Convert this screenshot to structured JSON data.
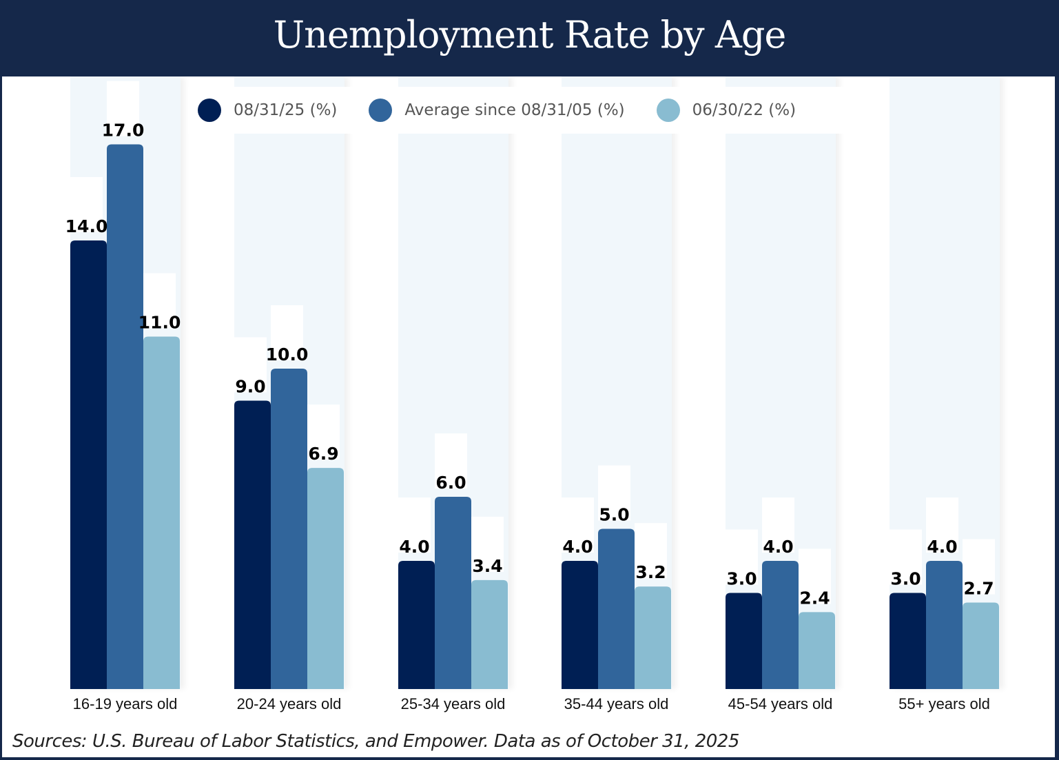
{
  "title": "Unemployment Rate by Age",
  "source": "Sources: U.S. Bureau of Labor Statistics, and Empower. Data as of October 31, 2025",
  "legend": [
    {
      "label": "08/31/25 (%)",
      "color": "#001f54"
    },
    {
      "label": "Average since 08/31/05 (%)",
      "color": "#31659b"
    },
    {
      "label": "06/30/22 (%)",
      "color": "#89bcd1"
    }
  ],
  "chart_data": {
    "type": "bar",
    "title": "Unemployment Rate by Age",
    "xlabel": "",
    "ylabel": "",
    "ylim": [
      0,
      17
    ],
    "grid": false,
    "legend_position": "top",
    "categories": [
      "16-19 years old",
      "20-24 years old",
      "25-34 years old",
      "35-44 years old",
      "45-54 years old",
      "55+ years old"
    ],
    "series": [
      {
        "name": "08/31/25 (%)",
        "color": "#001f54",
        "values": [
          14.0,
          9.0,
          4.0,
          4.0,
          3.0,
          3.0
        ],
        "labels": [
          "14.0",
          "9.0",
          "4.0",
          "4.0",
          "3.0",
          "3.0"
        ]
      },
      {
        "name": "Average since 08/31/05 (%)",
        "color": "#31659b",
        "values": [
          17.0,
          10.0,
          6.0,
          5.0,
          4.0,
          4.0
        ],
        "labels": [
          "17.0",
          "10.0",
          "6.0",
          "5.0",
          "4.0",
          "4.0"
        ]
      },
      {
        "name": "06/30/22 (%)",
        "color": "#89bcd1",
        "values": [
          11.0,
          6.9,
          3.4,
          3.2,
          2.4,
          2.7
        ],
        "labels": [
          "11.0",
          "6.9",
          "3.4",
          "3.2",
          "2.4",
          "2.7"
        ]
      }
    ]
  }
}
